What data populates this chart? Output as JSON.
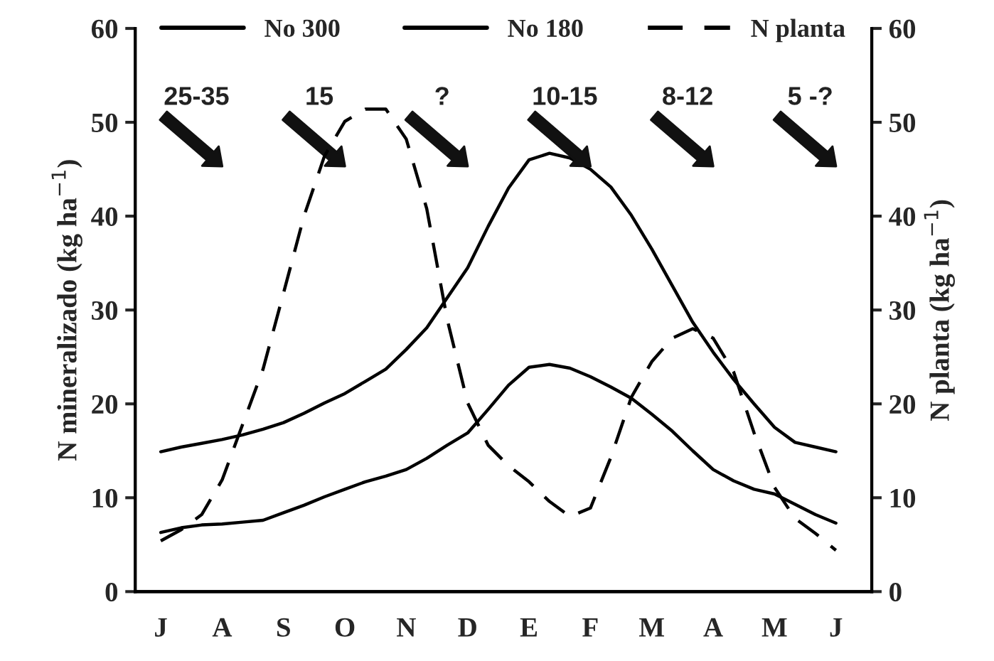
{
  "chart_data": {
    "type": "line",
    "ylabel": "N mineralizado (kg ha$^{−1}$)",
    "y2label": "N planta (kg ha$^{−1}$)",
    "categories": [
      "J",
      null,
      null,
      "A",
      null,
      null,
      "S",
      null,
      null,
      "O",
      null,
      null,
      "N",
      null,
      null,
      "D",
      null,
      null,
      "E",
      null,
      null,
      "F",
      null,
      null,
      "M",
      null,
      null,
      "A",
      null,
      null,
      "M",
      null,
      null,
      "J"
    ],
    "ylim": [
      0,
      60
    ],
    "yticks": [
      0,
      10,
      20,
      30,
      40,
      50,
      60
    ],
    "y2lim": [
      0,
      60
    ],
    "y2ticks": [
      0,
      10,
      20,
      30,
      40,
      50,
      60
    ],
    "legend": "top",
    "grid": false,
    "marker": "none",
    "series": [
      {
        "name": "No 300",
        "color": "#000000",
        "line_style": "solid",
        "values": [
          14.9,
          15.4,
          15.8,
          16.2,
          16.7,
          17.3,
          18.0,
          19.0,
          20.1,
          21.1,
          22.4,
          23.7,
          25.8,
          28.1,
          31.3,
          34.5,
          38.9,
          43.0,
          46.0,
          46.7,
          46.2,
          45.0,
          43.1,
          40.1,
          36.5,
          32.6,
          28.7,
          25.5,
          22.6,
          20.0,
          17.5,
          15.9,
          15.4,
          14.9
        ]
      },
      {
        "name": "No 180",
        "color": "#000000",
        "line_style": "solid",
        "values": [
          6.3,
          6.8,
          7.1,
          7.2,
          7.4,
          7.6,
          8.4,
          9.2,
          10.1,
          10.9,
          11.7,
          12.3,
          13.0,
          14.2,
          15.6,
          16.9,
          19.4,
          22.0,
          23.9,
          24.2,
          23.8,
          22.9,
          21.8,
          20.6,
          18.9,
          17.1,
          15.0,
          13.0,
          11.8,
          10.9,
          10.4,
          9.3,
          8.2,
          7.3
        ]
      },
      {
        "name": "N planta",
        "color": "#000000",
        "line_style": "dashed",
        "axis": "y2",
        "values": [
          5.4,
          6.6,
          8.2,
          11.9,
          17.8,
          23.7,
          31.8,
          40.0,
          46.4,
          50.1,
          51.4,
          51.4,
          48.2,
          40.8,
          29.0,
          20.1,
          15.6,
          13.4,
          11.7,
          9.6,
          8.0,
          8.9,
          14.3,
          20.7,
          24.5,
          27.0,
          28.0,
          27.0,
          23.4,
          16.9,
          11.1,
          7.8,
          6.2,
          4.4
        ]
      }
    ],
    "annotations": [
      "25-35",
      "15",
      "?",
      "10-15",
      "8-12",
      "5 -?"
    ]
  }
}
